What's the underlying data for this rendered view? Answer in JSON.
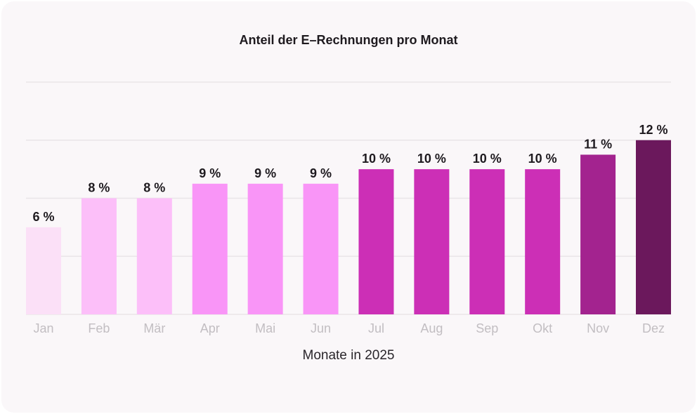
{
  "chart_data": {
    "type": "bar",
    "title": "Anteil der E–Rechnungen pro Monat",
    "xlabel": "Monate in 2025",
    "ylabel": "",
    "categories": [
      "Jan",
      "Feb",
      "Mär",
      "Apr",
      "Mai",
      "Jun",
      "Jul",
      "Aug",
      "Sep",
      "Okt",
      "Nov",
      "Dez"
    ],
    "values": [
      6,
      8,
      8,
      9,
      9,
      9,
      10,
      10,
      10,
      10,
      11,
      12
    ],
    "data_labels": [
      "6 %",
      "8 %",
      "8 %",
      "9 %",
      "9 %",
      "9 %",
      "10 %",
      "10 %",
      "10 %",
      "10 %",
      "11 %",
      "12 %"
    ],
    "colors": [
      "#fbe0f7",
      "#fcbff9",
      "#fcbff9",
      "#f995f7",
      "#f995f7",
      "#f995f7",
      "#cc2fb6",
      "#cc2fb6",
      "#cc2fb6",
      "#cc2fb6",
      "#a3238f",
      "#6b185c"
    ],
    "ylim": [
      0,
      16
    ],
    "grid": true,
    "gridlines": [
      0,
      4,
      8,
      12,
      16
    ]
  }
}
